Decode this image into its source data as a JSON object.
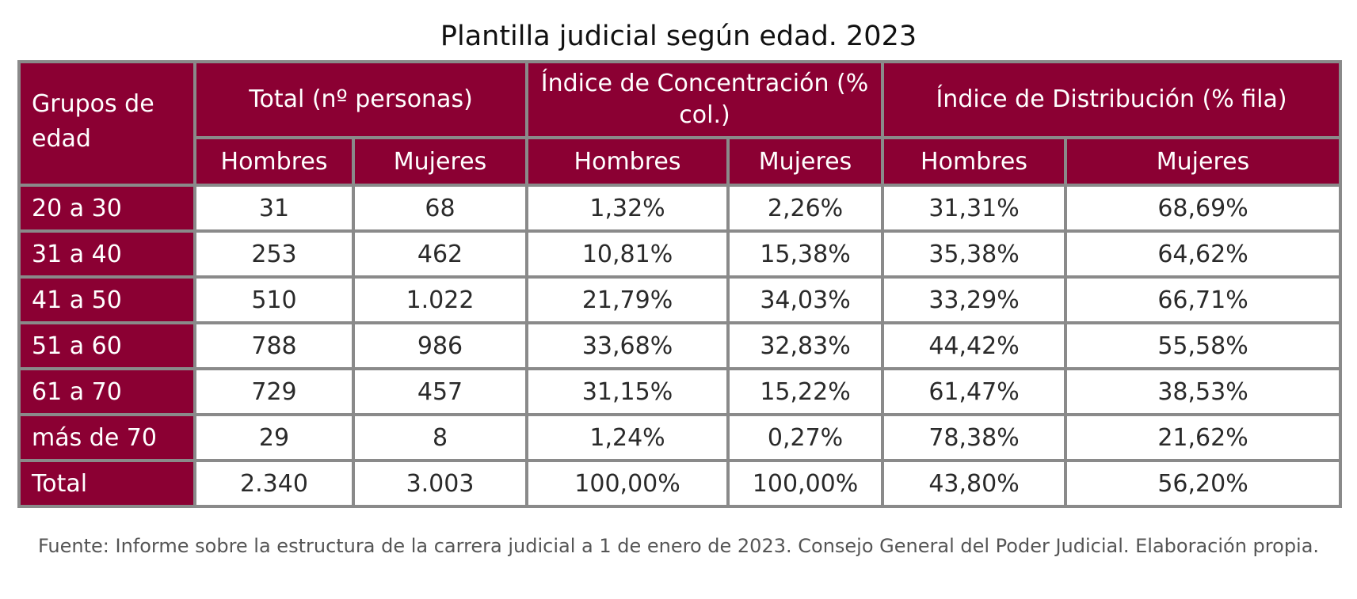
{
  "title": "Plantilla judicial según edad. 2023",
  "header": {
    "row_group_label": "Grupos de edad",
    "groups": [
      "Total (nº personas)",
      "Índice de Concentración (% col.)",
      "Índice de Distribución (% fila)"
    ],
    "sub_labels": [
      "Hombres",
      "Mujeres",
      "Hombres",
      "Mujeres",
      "Hombres",
      "Mujeres"
    ]
  },
  "rows": [
    {
      "label": "20 a 30",
      "values": [
        "31",
        "68",
        "1,32%",
        "2,26%",
        "31,31%",
        "68,69%"
      ]
    },
    {
      "label": "31 a 40",
      "values": [
        "253",
        "462",
        "10,81%",
        "15,38%",
        "35,38%",
        "64,62%"
      ]
    },
    {
      "label": "41 a 50",
      "values": [
        "510",
        "1.022",
        "21,79%",
        "34,03%",
        "33,29%",
        "66,71%"
      ]
    },
    {
      "label": "51 a 60",
      "values": [
        "788",
        "986",
        "33,68%",
        "32,83%",
        "44,42%",
        "55,58%"
      ]
    },
    {
      "label": "61 a 70",
      "values": [
        "729",
        "457",
        "31,15%",
        "15,22%",
        "61,47%",
        "38,53%"
      ]
    },
    {
      "label": "más de 70",
      "values": [
        "29",
        "8",
        "1,24%",
        "0,27%",
        "78,38%",
        "21,62%"
      ]
    },
    {
      "label": "Total",
      "values": [
        "2.340",
        "3.003",
        "100,00%",
        "100,00%",
        "43,80%",
        "56,20%"
      ]
    }
  ],
  "source": "Fuente: Informe sobre la estructura de la carrera judicial a 1 de enero de 2023. Consejo General del Poder Judicial. Elaboración propia.",
  "colors": {
    "header_bg": "#8b0033",
    "header_text": "#ffffff",
    "border": "#8a8a8a"
  }
}
